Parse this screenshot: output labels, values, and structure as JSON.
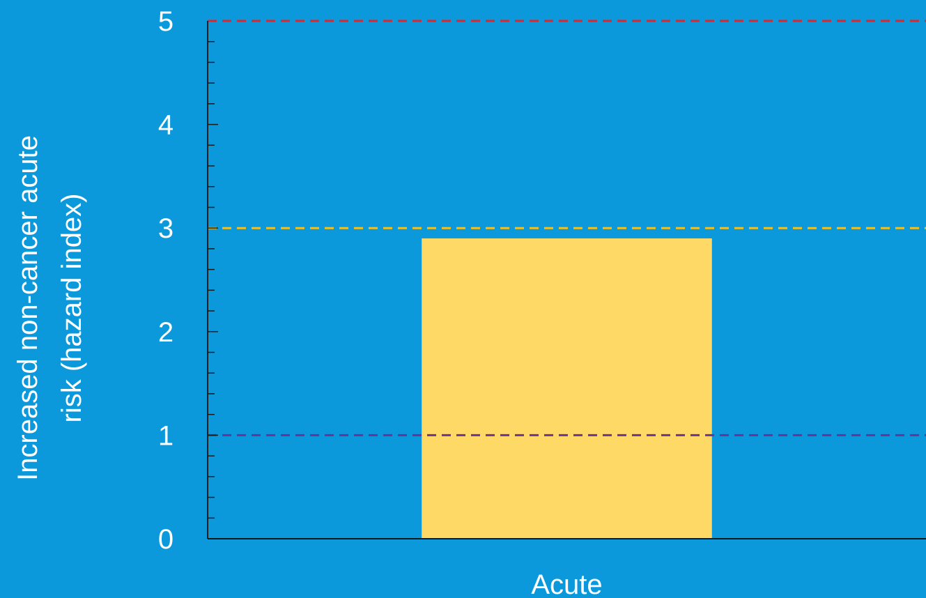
{
  "chart_data": {
    "type": "bar",
    "title": "",
    "categories": [
      "Acute"
    ],
    "values": [
      2.9
    ],
    "xlabel": "",
    "ylabel_lines": [
      "Increased non-cancer acute",
      "risk (hazard index)"
    ],
    "ylim": [
      0,
      5
    ],
    "yticks": [
      "0",
      "1",
      "2",
      "3",
      "4",
      "5"
    ],
    "minor_ticks_per_major": 5,
    "reference_lines": [
      {
        "y": 5,
        "color": "#d9282f"
      },
      {
        "y": 3,
        "color": "#f2c01e"
      },
      {
        "y": 1,
        "color": "#6a3494"
      }
    ],
    "grid": false,
    "legend": "none",
    "bar_color": "#ffd966",
    "background_color": "#0b99dc",
    "axis_color": "#1a1a1a"
  }
}
